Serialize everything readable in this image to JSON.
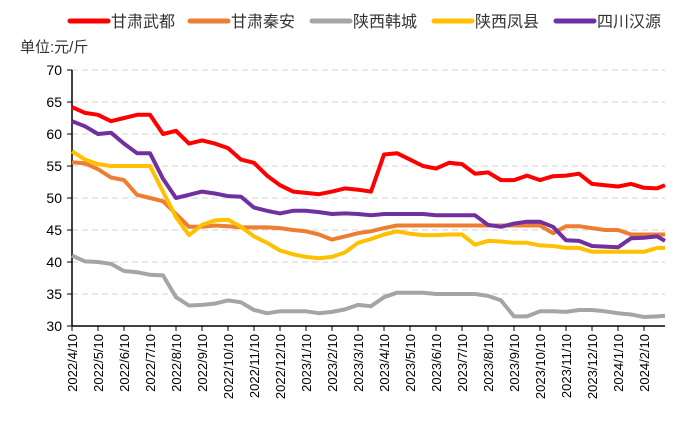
{
  "chart_data": {
    "type": "line",
    "unit_label": "单位:元/斤",
    "ylim": [
      30,
      70
    ],
    "yticks": [
      30,
      35,
      40,
      45,
      50,
      55,
      60,
      65,
      70
    ],
    "grid": "horizontal dashed",
    "legend_placement": "top",
    "xtick_labels": [
      "2022/4/10",
      "2022/5/10",
      "2022/6/10",
      "2022/7/10",
      "2022/8/10",
      "2022/9/10",
      "2022/10/10",
      "2022/11/10",
      "2022/12/10",
      "2023/1/10",
      "2023/2/10",
      "2023/3/10",
      "2023/4/10",
      "2023/5/10",
      "2023/6/10",
      "2023/7/10",
      "2023/8/10",
      "2023/9/10",
      "2023/10/10",
      "2023/11/10",
      "2023/12/10",
      "2024/1/10",
      "2024/2/10"
    ],
    "x": [
      "2022/4/10",
      "2022/4/25",
      "2022/5/10",
      "2022/5/25",
      "2022/6/10",
      "2022/6/25",
      "2022/7/10",
      "2022/7/25",
      "2022/8/10",
      "2022/8/25",
      "2022/9/10",
      "2022/9/25",
      "2022/10/10",
      "2022/10/25",
      "2022/11/10",
      "2022/11/25",
      "2022/12/10",
      "2022/12/25",
      "2023/1/10",
      "2023/1/25",
      "2023/2/10",
      "2023/2/25",
      "2023/3/10",
      "2023/3/25",
      "2023/4/10",
      "2023/4/25",
      "2023/5/10",
      "2023/5/25",
      "2023/6/10",
      "2023/6/25",
      "2023/7/10",
      "2023/7/25",
      "2023/8/10",
      "2023/8/25",
      "2023/9/10",
      "2023/9/25",
      "2023/10/10",
      "2023/10/25",
      "2023/11/10",
      "2023/11/25",
      "2023/12/10",
      "2023/12/25",
      "2024/1/10",
      "2024/1/25",
      "2024/2/10",
      "2024/2/25",
      "2024/3/3"
    ],
    "series": [
      {
        "name": "甘肃武都",
        "color": "#FF0000",
        "values": [
          64.2,
          63.3,
          63,
          62,
          62.5,
          63,
          63,
          60,
          60.5,
          58.5,
          59,
          58.5,
          57.8,
          56,
          55.5,
          53.5,
          52,
          51,
          50.8,
          50.6,
          51,
          51.5,
          51.3,
          51,
          56.8,
          57,
          56,
          55,
          54.6,
          55.5,
          55.3,
          53.8,
          54,
          52.8,
          52.8,
          53.5,
          52.8,
          53.4,
          53.5,
          53.8,
          52.2,
          52,
          51.8,
          52.2,
          51.6,
          51.5,
          52
        ]
      },
      {
        "name": "甘肃秦安",
        "color": "#ED7D31",
        "values": [
          55.6,
          55.4,
          54.5,
          53.2,
          52.8,
          50.5,
          50,
          49.5,
          47.5,
          45.5,
          45.5,
          45.7,
          45.6,
          45.4,
          45.4,
          45.4,
          45.3,
          45,
          44.8,
          44.3,
          43.5,
          44,
          44.5,
          44.8,
          45.3,
          45.7,
          45.7,
          45.7,
          45.7,
          45.7,
          45.7,
          45.7,
          45.7,
          45.7,
          45.7,
          45.7,
          45.7,
          44.5,
          45.6,
          45.6,
          45.3,
          45,
          45,
          44.3,
          44.3,
          44.3,
          44.3
        ]
      },
      {
        "name": "陕西韩城",
        "color": "#A5A5A5",
        "values": [
          41,
          40.1,
          40,
          39.7,
          38.6,
          38.4,
          38,
          37.9,
          34.5,
          33.2,
          33.3,
          33.5,
          34,
          33.7,
          32.5,
          32,
          32.3,
          32.3,
          32.3,
          32,
          32.2,
          32.6,
          33.3,
          33.1,
          34.5,
          35.2,
          35.2,
          35.2,
          35,
          35,
          35,
          35,
          34.7,
          34,
          31.5,
          31.5,
          32.3,
          32.3,
          32.2,
          32.5,
          32.5,
          32.3,
          32,
          31.8,
          31.4,
          31.5,
          31.6
        ]
      },
      {
        "name": "陕西凤县",
        "color": "#FFC000",
        "values": [
          57.3,
          56,
          55.3,
          55,
          55,
          55,
          55,
          51,
          47,
          44.2,
          45.8,
          46.5,
          46.6,
          45.5,
          44,
          43,
          41.8,
          41.2,
          40.8,
          40.6,
          40.8,
          41.5,
          43,
          43.6,
          44.3,
          44.8,
          44.4,
          44.2,
          44.2,
          44.3,
          44.3,
          42.7,
          43.3,
          43.2,
          43,
          43,
          42.6,
          42.5,
          42.2,
          42.2,
          41.6,
          41.6,
          41.6,
          41.6,
          41.6,
          42.2,
          42.2
        ]
      },
      {
        "name": "四川汉源",
        "color": "#7030A0",
        "values": [
          62,
          61.2,
          60,
          60.2,
          58.5,
          57,
          57,
          53,
          50,
          50.5,
          51,
          50.7,
          50.3,
          50.2,
          48.5,
          48,
          47.6,
          48,
          48,
          47.8,
          47.5,
          47.6,
          47.5,
          47.3,
          47.5,
          47.5,
          47.5,
          47.5,
          47.3,
          47.3,
          47.3,
          47.3,
          45.8,
          45.5,
          46,
          46.3,
          46.3,
          45.5,
          43.4,
          43.3,
          42.5,
          42.4,
          42.3,
          43.7,
          43.8,
          44,
          43.3
        ]
      }
    ]
  }
}
